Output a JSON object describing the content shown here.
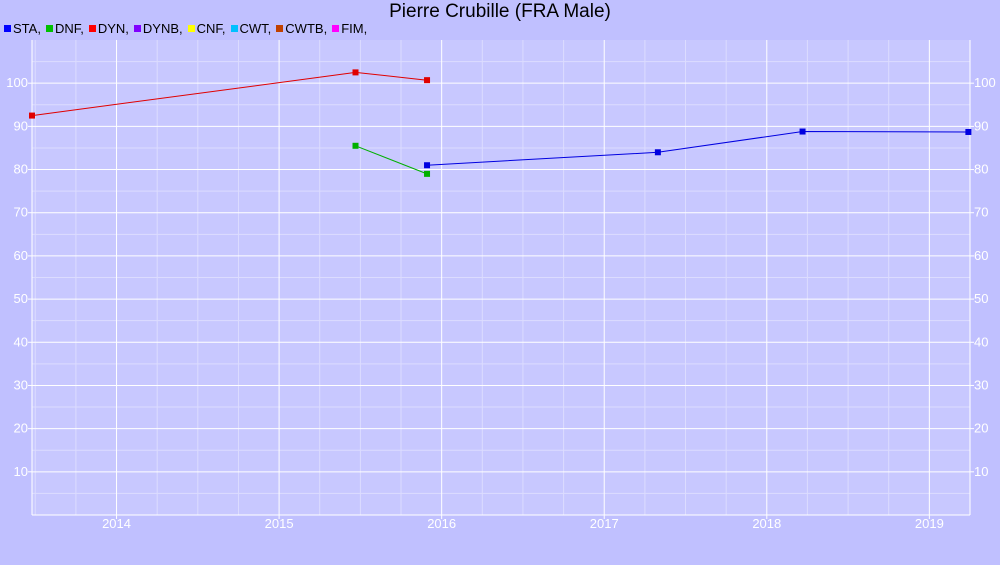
{
  "chart_data": {
    "type": "line",
    "title": "Pierre Crubille (FRA Male)",
    "xlabel": "",
    "ylabel": "",
    "x_ticks": [
      "2014",
      "2015",
      "2016",
      "2017",
      "2018",
      "2019"
    ],
    "y_ticks": [
      "10",
      "20",
      "30",
      "40",
      "50",
      "60",
      "70",
      "80",
      "90",
      "100"
    ],
    "xlim": [
      2013.48,
      2019.25
    ],
    "ylim": [
      0,
      110
    ],
    "grid": true,
    "legend_position": "top-left",
    "legend": [
      {
        "name": "STA,",
        "color": "#0000ff"
      },
      {
        "name": "DNF,",
        "color": "#00c000"
      },
      {
        "name": "DYN,",
        "color": "#ff0000"
      },
      {
        "name": "DYNB,",
        "color": "#8000ff"
      },
      {
        "name": "CNF,",
        "color": "#ffff00"
      },
      {
        "name": "CWT,",
        "color": "#00c0ff"
      },
      {
        "name": "CWTB,",
        "color": "#c04000"
      },
      {
        "name": "FIM,",
        "color": "#ff00ff"
      }
    ],
    "series": [
      {
        "name": "DYN",
        "color": "#e00000",
        "points": [
          [
            2013.48,
            92.5
          ],
          [
            2015.47,
            102.5
          ],
          [
            2015.91,
            100.7
          ]
        ]
      },
      {
        "name": "DNF",
        "color": "#00b000",
        "points": [
          [
            2015.47,
            85.5
          ],
          [
            2015.91,
            79.0
          ]
        ]
      },
      {
        "name": "STA",
        "color": "#0000e0",
        "points": [
          [
            2015.91,
            81.0
          ],
          [
            2017.33,
            84.0
          ],
          [
            2018.22,
            88.8
          ],
          [
            2019.24,
            88.7
          ]
        ]
      }
    ]
  }
}
